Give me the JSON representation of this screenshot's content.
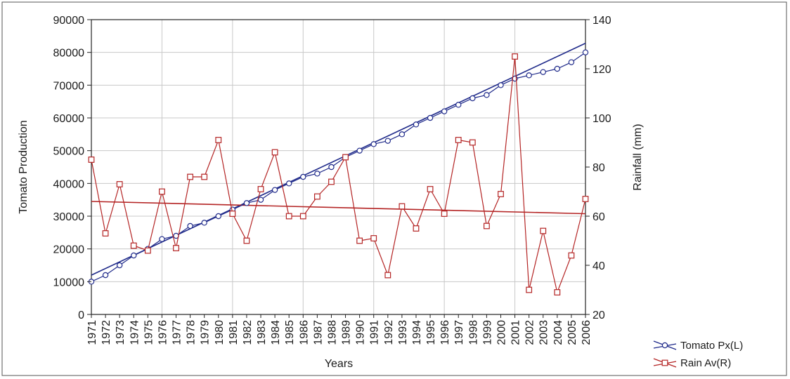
{
  "chart_data": {
    "type": "line",
    "title": "",
    "xlabel": "Years",
    "ylabel_left": "Tomato Production",
    "ylabel_right": "Rainfall (mm)",
    "x": [
      "1971",
      "1972",
      "1973",
      "1974",
      "1975",
      "1976",
      "1977",
      "1978",
      "1979",
      "1980",
      "1981",
      "1982",
      "1983",
      "1984",
      "1985",
      "1986",
      "1987",
      "1988",
      "1989",
      "1990",
      "1991",
      "1992",
      "1993",
      "1994",
      "1995",
      "1996",
      "1997",
      "1998",
      "1999",
      "2000",
      "2001",
      "2002",
      "2003",
      "2004",
      "2005",
      "2006"
    ],
    "ylim_left": [
      0,
      90000
    ],
    "yticks_left": [
      0,
      10000,
      20000,
      30000,
      40000,
      50000,
      60000,
      70000,
      80000,
      90000
    ],
    "ylim_right": [
      20,
      140
    ],
    "yticks_right": [
      20,
      40,
      60,
      80,
      100,
      120,
      140
    ],
    "grid": true,
    "legend_position": "bottom-right, outside plot",
    "series": [
      {
        "name": "Tomato Px(L)",
        "axis": "left",
        "color": "#1f2a8a",
        "marker": "circle",
        "values": [
          10000,
          12000,
          15000,
          18000,
          20000,
          23000,
          24000,
          27000,
          28000,
          30000,
          32000,
          34000,
          35000,
          38000,
          40000,
          42000,
          43000,
          45000,
          48000,
          50000,
          52000,
          53000,
          55000,
          58000,
          60000,
          62000,
          64000,
          66000,
          67000,
          70000,
          72000,
          73000,
          74000,
          75000,
          77000,
          80000
        ],
        "trend": [
          12000,
          82800
        ]
      },
      {
        "name": "Rain Av(R)",
        "axis": "right",
        "color": "#b42424",
        "marker": "square",
        "values": [
          83,
          53,
          73,
          48,
          46,
          70,
          47,
          76,
          76,
          91,
          61,
          50,
          71,
          86,
          60,
          60,
          68,
          74,
          84,
          50,
          51,
          36,
          64,
          55,
          71,
          61,
          91,
          90,
          56,
          69,
          125,
          30,
          54,
          29,
          44,
          67
        ],
        "trend": [
          66,
          61
        ]
      }
    ]
  }
}
